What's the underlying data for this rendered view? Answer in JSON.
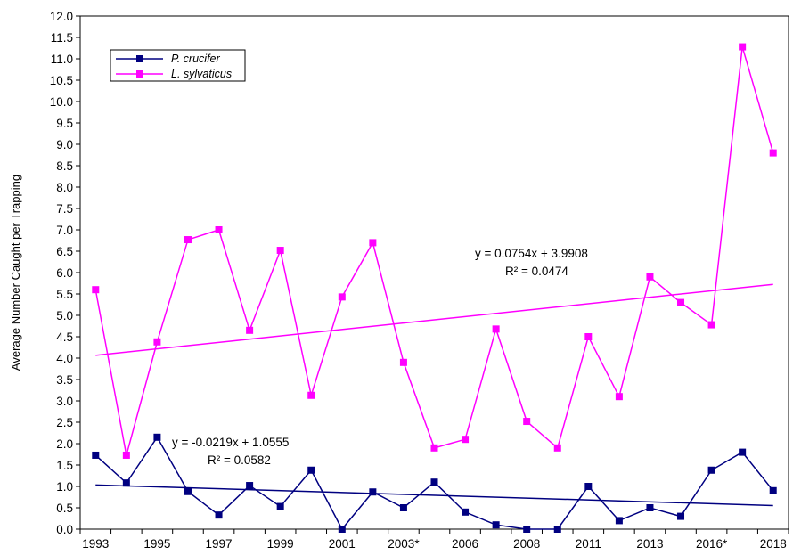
{
  "chart_data": {
    "type": "line",
    "ylabel": "Average Number Caught per Trapping",
    "ylim": [
      0,
      12
    ],
    "ytick_step": 0.5,
    "ytick_labels": [
      "0.0",
      "0.5",
      "1.0",
      "1.5",
      "2.0",
      "2.5",
      "3.0",
      "3.5",
      "4.0",
      "4.5",
      "5.0",
      "5.5",
      "6.0",
      "6.5",
      "7.0",
      "7.5",
      "8.0",
      "8.5",
      "9.0",
      "9.5",
      "10.0",
      "10.5",
      "11.0",
      "11.5",
      "12.0"
    ],
    "categories": [
      "1993",
      "1994",
      "1995",
      "1996",
      "1997",
      "1998",
      "1999",
      "2000",
      "2001",
      "2002",
      "2003*",
      "2004",
      "2006",
      "2007",
      "2008",
      "2009",
      "2011",
      "2012",
      "2013",
      "2014",
      "2016*",
      "2017",
      "2018"
    ],
    "xtick_labels": [
      "1993",
      "1995",
      "1997",
      "1999",
      "2001",
      "2003*",
      "2006",
      "2008",
      "2011",
      "2013",
      "2016*",
      "2018"
    ],
    "xtick_indices": [
      0,
      2,
      4,
      6,
      8,
      10,
      12,
      14,
      16,
      18,
      20,
      22
    ],
    "grid": false,
    "legend_position": "top-left",
    "series": [
      {
        "name": "P. crucifer",
        "color": "#000080",
        "values": [
          1.73,
          1.08,
          2.15,
          0.88,
          0.33,
          1.02,
          0.53,
          1.38,
          0.0,
          0.87,
          0.5,
          1.1,
          0.4,
          0.1,
          0.0,
          0.0,
          1.0,
          0.2,
          0.5,
          0.3,
          1.38,
          1.8,
          0.9
        ],
        "trendline": {
          "slope": -0.0219,
          "intercept": 1.0555,
          "equation": "y = -0.0219x + 1.0555",
          "r2": "R² = 0.0582"
        }
      },
      {
        "name": "L. sylvaticus",
        "color": "#ff00ff",
        "values": [
          5.6,
          1.73,
          4.38,
          6.77,
          7.0,
          4.65,
          6.52,
          3.13,
          5.43,
          6.7,
          3.9,
          1.9,
          2.1,
          4.68,
          2.52,
          1.9,
          4.5,
          3.1,
          5.9,
          5.3,
          4.78,
          11.28,
          8.8
        ],
        "trendline": {
          "slope": 0.0754,
          "intercept": 3.9908,
          "equation": "y = 0.0754x + 3.9908",
          "r2": "R² = 0.0474"
        }
      }
    ]
  }
}
